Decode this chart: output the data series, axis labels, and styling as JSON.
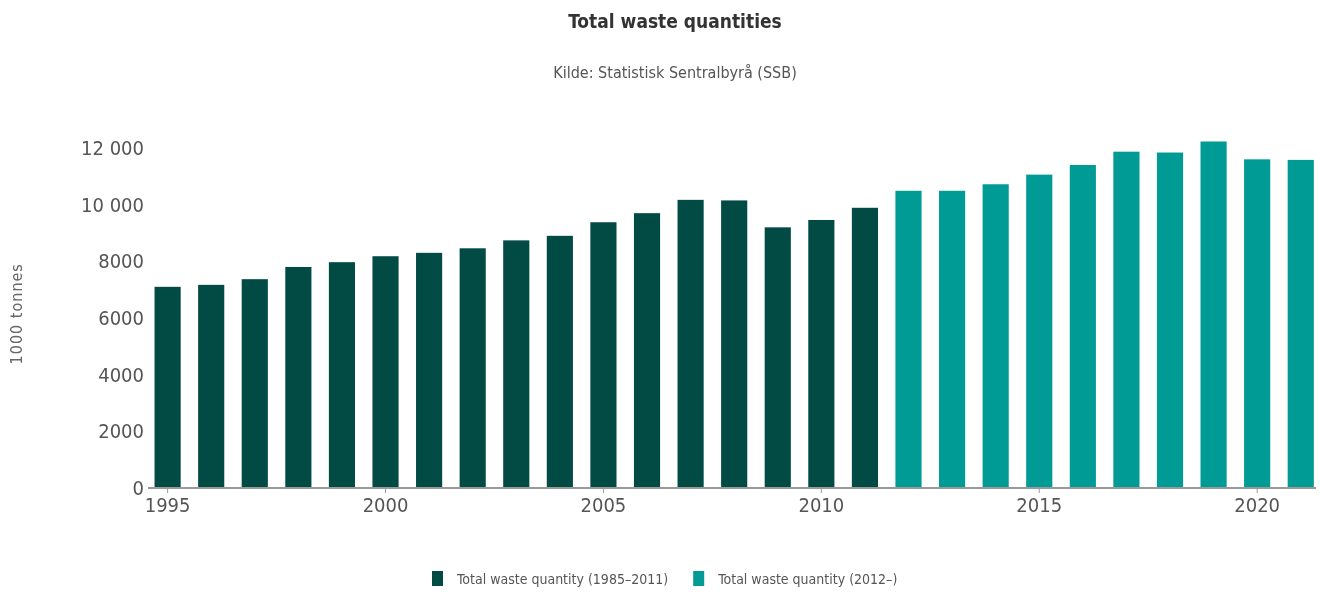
{
  "chart_data": {
    "type": "bar",
    "title": "Total waste quantities",
    "subtitle": "Kilde: Statistisk Sentralbyrå (SSB)",
    "ylabel": "1000 tonnes",
    "series": [
      {
        "name": "Total waste quantity (1985–2011)",
        "color": "#024b45",
        "x": [
          1995,
          1996,
          1997,
          1998,
          1999,
          2000,
          2001,
          2002,
          2003,
          2004,
          2005,
          2006,
          2007,
          2008,
          2009,
          2010,
          2011
        ],
        "values": [
          7100,
          7170,
          7370,
          7800,
          7970,
          8180,
          8300,
          8460,
          8740,
          8900,
          9380,
          9700,
          10170,
          10150,
          9200,
          9460,
          9890
        ]
      },
      {
        "name": "Total waste quantity (2012–)",
        "color": "#009b94",
        "x": [
          2012,
          2013,
          2014,
          2015,
          2016,
          2017,
          2018,
          2019,
          2020,
          2021
        ],
        "values": [
          10490,
          10490,
          10720,
          11060,
          11400,
          11870,
          11840,
          12230,
          11600,
          11580
        ]
      }
    ],
    "xlim": [
      1994.55,
      2021.35
    ],
    "xticks": [
      1995,
      2000,
      2005,
      2010,
      2015,
      2020
    ],
    "ylim": [
      0,
      12300
    ],
    "yticks": [
      0,
      2000,
      4000,
      6000,
      8000,
      {
        "value": 10000,
        "label": "10 000"
      },
      {
        "value": 12000,
        "label": "12 000"
      }
    ],
    "grid": false,
    "legend": "bottom"
  }
}
